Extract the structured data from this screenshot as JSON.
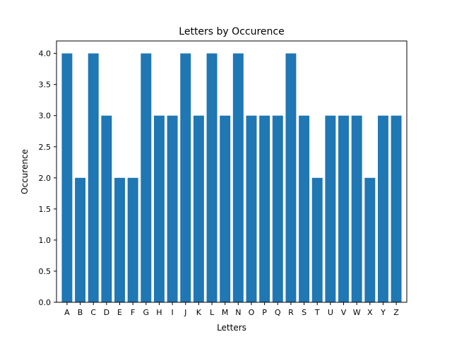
{
  "chart_data": {
    "type": "bar",
    "title": "Letters by Occurence",
    "xlabel": "Letters",
    "ylabel": "Occurence",
    "categories": [
      "A",
      "B",
      "C",
      "D",
      "E",
      "F",
      "G",
      "H",
      "I",
      "J",
      "K",
      "L",
      "M",
      "N",
      "O",
      "P",
      "Q",
      "R",
      "S",
      "T",
      "U",
      "V",
      "W",
      "X",
      "Y",
      "Z"
    ],
    "values": [
      4,
      2,
      4,
      3,
      2,
      2,
      4,
      3,
      3,
      4,
      3,
      4,
      3,
      4,
      3,
      3,
      3,
      4,
      3,
      2,
      3,
      3,
      3,
      2,
      3,
      3
    ],
    "ylim": [
      0,
      4.2
    ],
    "yticks": [
      "0.0",
      "0.5",
      "1.0",
      "1.5",
      "2.0",
      "2.5",
      "3.0",
      "3.5",
      "4.0"
    ],
    "bar_color": "#1f77b4",
    "grid": false,
    "legend": false
  }
}
